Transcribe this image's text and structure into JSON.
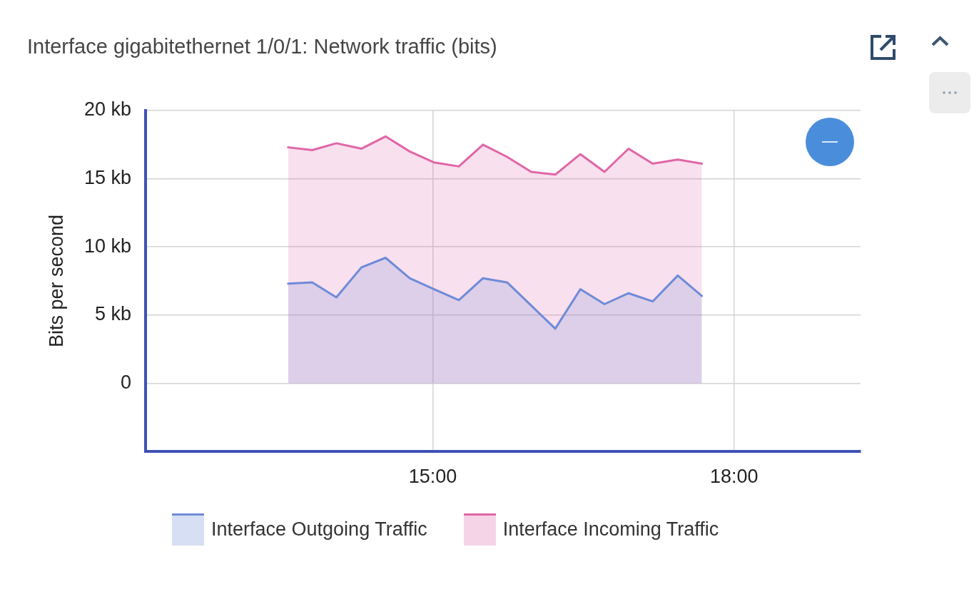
{
  "chart_data": {
    "type": "area",
    "title": "Interface gigabitethernet 1/0/1: Network traffic (bits)",
    "ylabel": "Bits per second",
    "x": [
      13.56,
      13.8,
      14.04,
      14.29,
      14.53,
      14.77,
      15.01,
      15.26,
      15.5,
      15.74,
      15.98,
      16.22,
      16.47,
      16.71,
      16.95,
      17.19,
      17.44,
      17.68
    ],
    "series": [
      {
        "name": "Interface Outgoing Traffic",
        "color": "#6e8bd8",
        "values": [
          7.3,
          7.4,
          6.3,
          8.5,
          9.2,
          7.7,
          6.9,
          6.1,
          7.7,
          7.4,
          5.7,
          4.0,
          6.9,
          5.8,
          6.6,
          6.0,
          7.9,
          6.4
        ]
      },
      {
        "name": "Interface Incoming Traffic",
        "color": "#e066a8",
        "values": [
          17.3,
          17.1,
          17.6,
          17.2,
          18.1,
          17.0,
          16.2,
          15.9,
          17.5,
          16.6,
          15.5,
          15.3,
          16.8,
          15.5,
          17.2,
          16.1,
          16.4,
          16.1
        ]
      }
    ],
    "xlim": [
      12.14,
      19.26
    ],
    "xticks": [
      {
        "value": 15,
        "label": "15:00"
      },
      {
        "value": 18,
        "label": "18:00"
      }
    ],
    "ylim": [
      -5,
      20
    ],
    "yticks": [
      0,
      {
        "value": 5,
        "label": "5 kb"
      },
      {
        "value": 10,
        "label": "10 kb"
      },
      {
        "value": 15,
        "label": "15 kb"
      },
      {
        "value": 20,
        "label": "20 kb"
      }
    ],
    "grid": true,
    "legend": "bottom"
  }
}
